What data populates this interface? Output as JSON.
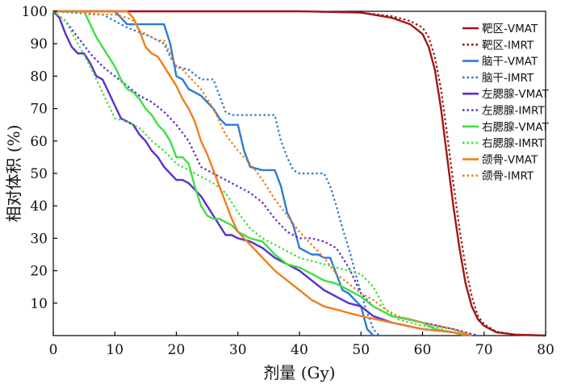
{
  "chart_data": {
    "type": "line",
    "title": "",
    "xlabel": "剂量 (Gy)",
    "ylabel": "相对体积 (%)",
    "xlim": [
      0,
      80
    ],
    "ylim": [
      0,
      100
    ],
    "xticks": [
      0,
      10,
      20,
      30,
      40,
      50,
      60,
      70,
      80
    ],
    "yticks": [
      10,
      20,
      30,
      40,
      50,
      60,
      70,
      80,
      90,
      100
    ],
    "grid": false,
    "legend_position": "top-right",
    "series": [
      {
        "name": "靶区-VMAT",
        "color": "#a31515",
        "style": "solid",
        "x": [
          0,
          20,
          40,
          50,
          55,
          58,
          60,
          61,
          62,
          63,
          64,
          65,
          66,
          67,
          68,
          69,
          70,
          72,
          75,
          80
        ],
        "y": [
          100,
          100,
          100,
          99.6,
          98,
          96,
          93,
          89,
          82,
          70,
          55,
          40,
          27,
          16,
          9,
          5,
          3,
          1,
          0.3,
          0
        ]
      },
      {
        "name": "靶区-IMRT",
        "color": "#a31515",
        "style": "dotted",
        "x": [
          0,
          20,
          40,
          50,
          55,
          58,
          60,
          61,
          62,
          63,
          64,
          65,
          66,
          67,
          68,
          69,
          70,
          72,
          75,
          80
        ],
        "y": [
          100,
          100,
          100,
          99.6,
          98.5,
          97,
          95,
          92,
          86,
          76,
          62,
          47,
          33,
          21,
          12,
          6,
          3.5,
          1.2,
          0.3,
          0
        ]
      },
      {
        "name": "脑干-VMAT",
        "color": "#2b7bd6",
        "style": "solid",
        "x": [
          0,
          10,
          11,
          12,
          18,
          19,
          20,
          21,
          22,
          24,
          26,
          27,
          28,
          30,
          31,
          32,
          34,
          36,
          37,
          38,
          39,
          40,
          42,
          43,
          44,
          45,
          46,
          47,
          48,
          49,
          50,
          51,
          52
        ],
        "y": [
          100,
          100,
          98,
          96,
          96,
          90,
          80,
          79,
          76,
          74,
          70,
          67,
          65,
          65,
          57,
          52,
          51,
          51,
          46,
          38,
          34,
          27,
          25,
          25,
          24,
          24,
          19,
          14,
          13,
          11,
          9,
          2,
          0
        ]
      },
      {
        "name": "脑干-IMRT",
        "color": "#2b7bd6",
        "style": "dotted",
        "x": [
          0,
          8,
          10,
          12,
          16,
          18,
          19,
          20,
          22,
          24,
          25,
          26,
          27,
          28,
          29,
          30,
          34,
          36,
          37,
          38,
          39,
          40,
          41,
          42,
          43,
          44,
          45,
          46,
          47,
          48,
          49,
          50,
          51,
          52,
          53
        ],
        "y": [
          100,
          99,
          97,
          95,
          92,
          90,
          86,
          83,
          82,
          79,
          79,
          79,
          74,
          69,
          68,
          68,
          68,
          68,
          60,
          55,
          51,
          50,
          50,
          50,
          50,
          50,
          46,
          40,
          33,
          27,
          20,
          13,
          7,
          2,
          0
        ]
      },
      {
        "name": "左腮腺-VMAT",
        "color": "#5a2fd0",
        "style": "solid",
        "x": [
          0,
          1,
          2,
          3,
          4,
          5,
          6,
          7,
          8,
          9,
          10,
          11,
          12,
          13,
          14,
          15,
          16,
          17,
          18,
          19,
          20,
          21,
          22,
          23,
          24,
          25,
          26,
          27,
          28,
          29,
          30,
          32,
          34,
          36,
          38,
          40,
          42,
          44,
          46,
          48,
          50,
          52,
          55,
          60,
          65,
          67
        ],
        "y": [
          100,
          98,
          93,
          89,
          87,
          87,
          84,
          80,
          79,
          75,
          71,
          67,
          66,
          65,
          62,
          60,
          57,
          55,
          52,
          50,
          48,
          48,
          47,
          45,
          43,
          40,
          37,
          34,
          31,
          31,
          30,
          29,
          27,
          24,
          22,
          20,
          17,
          14,
          12,
          10,
          9,
          6,
          4,
          2,
          1,
          0
        ]
      },
      {
        "name": "左腮腺-IMRT",
        "color": "#5a2fd0",
        "style": "dotted",
        "x": [
          0,
          2,
          4,
          6,
          8,
          10,
          12,
          14,
          16,
          18,
          20,
          22,
          24,
          26,
          28,
          30,
          32,
          34,
          36,
          38,
          40,
          42,
          44,
          46,
          48,
          50,
          52,
          55,
          60,
          65,
          69
        ],
        "y": [
          100,
          97,
          92,
          87,
          83,
          80,
          77,
          74,
          72,
          69,
          65,
          60,
          52,
          50,
          48,
          46,
          44,
          41,
          36,
          32,
          30,
          30,
          29,
          27,
          21,
          13,
          9,
          6,
          4,
          2,
          0
        ]
      },
      {
        "name": "右腮腺-VMAT",
        "color": "#3fe03f",
        "style": "solid",
        "x": [
          0,
          5,
          6,
          7,
          8,
          9,
          10,
          11,
          12,
          13,
          14,
          15,
          16,
          17,
          18,
          19,
          20,
          21,
          22,
          23,
          24,
          25,
          26,
          27,
          28,
          29,
          30,
          32,
          34,
          36,
          38,
          40,
          42,
          44,
          46,
          48,
          50,
          52,
          55,
          58,
          60,
          62,
          65,
          67
        ],
        "y": [
          100,
          100,
          96,
          92,
          89,
          86,
          83,
          79,
          76,
          75,
          73,
          70,
          68,
          65,
          63,
          60,
          55,
          55,
          53,
          46,
          40,
          37,
          36,
          36,
          35,
          34,
          32,
          30,
          29,
          25,
          22,
          21,
          19,
          17,
          16,
          14,
          12,
          9,
          6,
          5,
          4,
          2,
          1,
          0
        ]
      },
      {
        "name": "右腮腺-IMRT",
        "color": "#3fe03f",
        "style": "dotted",
        "x": [
          0,
          2,
          4,
          6,
          8,
          10,
          12,
          14,
          16,
          18,
          20,
          22,
          24,
          26,
          28,
          30,
          32,
          34,
          36,
          38,
          40,
          42,
          44,
          46,
          48,
          50,
          52,
          54,
          56,
          60,
          65,
          68
        ],
        "y": [
          100,
          97,
          90,
          83,
          75,
          67,
          66,
          64,
          60,
          57,
          53,
          51,
          49,
          47,
          44,
          38,
          33,
          30,
          28,
          26,
          24,
          23,
          22,
          21,
          20,
          19,
          15,
          8,
          5,
          3,
          2,
          0
        ]
      },
      {
        "name": "颌骨-VMAT",
        "color": "#f07f1a",
        "style": "solid",
        "x": [
          0,
          10,
          12,
          13,
          14,
          15,
          16,
          17,
          18,
          19,
          20,
          21,
          22,
          23,
          24,
          25,
          26,
          27,
          28,
          29,
          30,
          32,
          34,
          36,
          38,
          40,
          42,
          44,
          46,
          48,
          50,
          55,
          60,
          65,
          68
        ],
        "y": [
          100,
          100,
          100,
          98,
          94,
          89,
          87,
          86,
          83,
          80,
          77,
          73,
          70,
          66,
          60,
          56,
          51,
          46,
          41,
          36,
          32,
          28,
          24,
          20,
          17,
          14,
          11,
          9,
          8,
          7,
          6,
          4,
          2,
          1,
          0
        ]
      },
      {
        "name": "颌骨-IMRT",
        "color": "#f07f1a",
        "style": "dotted",
        "x": [
          0,
          4,
          6,
          8,
          10,
          12,
          13,
          14,
          15,
          16,
          17,
          18,
          19,
          20,
          21,
          22,
          24,
          26,
          28,
          30,
          32,
          34,
          36,
          38,
          40,
          42,
          44,
          46,
          48,
          50,
          52,
          54,
          56,
          60,
          65,
          68
        ],
        "y": [
          100,
          100,
          99,
          99,
          99,
          98,
          97,
          94,
          93,
          92,
          91,
          91,
          87,
          83,
          82,
          80,
          76,
          70,
          62,
          57,
          53,
          48,
          42,
          37,
          32,
          28,
          24,
          19,
          16,
          13,
          11,
          8,
          6,
          4,
          2,
          0
        ]
      }
    ]
  }
}
